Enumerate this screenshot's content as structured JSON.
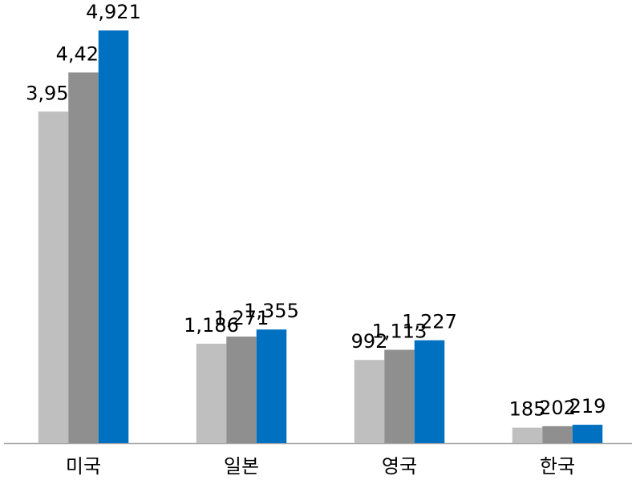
{
  "chart_data": {
    "type": "bar",
    "categories": [
      "미국",
      "일본",
      "영국",
      "한국"
    ],
    "series": [
      {
        "color": "#bfbfbf",
        "values": [
          3953,
          1186,
          992,
          185
        ],
        "value_labels": [
          "3,953",
          "1,186",
          "992",
          "185"
        ]
      },
      {
        "color": "#8f8f8f",
        "values": [
          4420,
          1271,
          1113,
          202
        ],
        "value_labels": [
          "4,420",
          "1,271",
          "1,113",
          "202"
        ]
      },
      {
        "color": "#0070c0",
        "values": [
          4921,
          1355,
          1227,
          219
        ],
        "value_labels": [
          "4,921",
          "1,355",
          "1,227",
          "219"
        ]
      }
    ]
  }
}
